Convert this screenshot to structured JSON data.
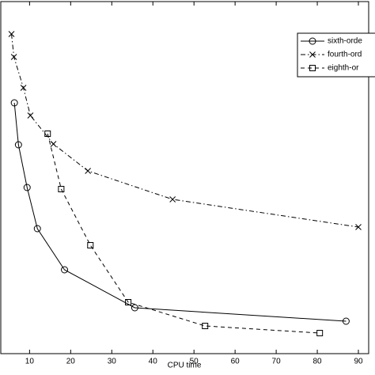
{
  "chart_data": {
    "type": "line",
    "xlabel": "CPU time",
    "xlim": [
      3,
      92.5
    ],
    "xticks": [
      10,
      20,
      30,
      40,
      50,
      60,
      70,
      80,
      90
    ],
    "ylim": [
      0,
      8.9
    ],
    "legend": "northeast",
    "series": [
      {
        "name": "sixth-orde",
        "color": "#000000",
        "marker": "circle",
        "linestyle": "solid",
        "x": [
          6.3,
          7.3,
          9.4,
          11.9,
          18.5,
          35.6,
          87.0
        ],
        "values": [
          6.34,
          5.28,
          4.2,
          3.16,
          2.12,
          1.16,
          0.82
        ]
      },
      {
        "name": "fourth-ord",
        "color": "#000000",
        "marker": "x",
        "linestyle": "dashdot",
        "x": [
          5.6,
          6.2,
          8.5,
          10.2,
          15.8,
          24.2,
          44.8,
          90.0
        ],
        "values": [
          8.08,
          7.5,
          6.72,
          6.02,
          5.3,
          4.62,
          3.9,
          3.2
        ]
      },
      {
        "name": "eighth-or",
        "color": "#000000",
        "marker": "square",
        "linestyle": "dashed",
        "x": [
          14.4,
          17.7,
          24.8,
          34.0,
          52.7,
          80.6
        ],
        "values": [
          5.56,
          4.16,
          2.74,
          1.3,
          0.7,
          0.52
        ]
      }
    ]
  }
}
